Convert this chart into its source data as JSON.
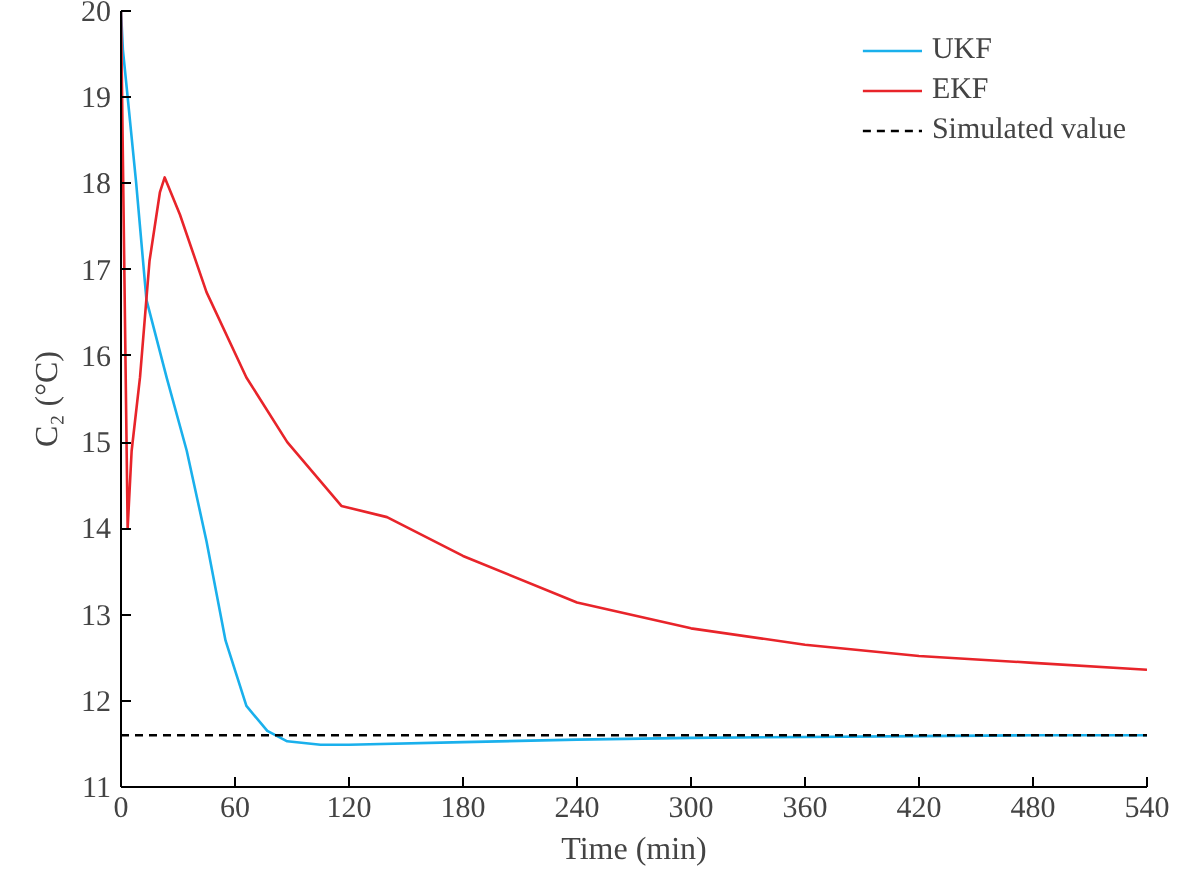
{
  "chart_data": {
    "type": "line",
    "xlabel": "Time (min)",
    "ylabel": "C₂ (°C)",
    "xlim": [
      0,
      540
    ],
    "ylim": [
      11,
      20
    ],
    "xticks": [
      0,
      60,
      120,
      180,
      240,
      300,
      360,
      420,
      480,
      540
    ],
    "yticks": [
      11,
      12,
      13,
      14,
      15,
      16,
      17,
      18,
      19,
      20
    ],
    "grid": false,
    "legend": "top right",
    "line_style": "solid",
    "marker": "none",
    "series": [
      {
        "name": "UKF",
        "color": "#1ab0ec",
        "x": [
          0,
          1,
          3.5,
          8,
          13.4,
          24,
          34.6,
          45,
          55,
          66,
          77,
          87.5,
          105,
          120,
          180,
          240,
          300,
          360,
          420,
          480,
          540
        ],
        "values": [
          20,
          19.55,
          19.0,
          18.0,
          16.65,
          15.75,
          14.9,
          13.85,
          12.7,
          11.94,
          11.65,
          11.53,
          11.49,
          11.49,
          11.52,
          11.55,
          11.57,
          11.58,
          11.59,
          11.6,
          11.6
        ]
      },
      {
        "name": "EKF",
        "color": "#e8242a",
        "x": [
          0,
          3.5,
          5.6,
          10,
          15,
          20.5,
          23,
          31,
          45,
          66,
          87.5,
          116,
          140,
          180,
          240,
          300,
          360,
          420,
          480,
          540
        ],
        "values": [
          20,
          14.0,
          14.9,
          15.75,
          17.1,
          17.9,
          18.07,
          17.64,
          16.74,
          15.75,
          15.0,
          14.26,
          14.13,
          13.68,
          13.14,
          12.84,
          12.65,
          12.52,
          12.44,
          12.36
        ]
      },
      {
        "name": "Simulated value",
        "color": "#000000",
        "line_style": "dashed",
        "x": [
          0,
          540
        ],
        "values": [
          11.6,
          11.6
        ]
      }
    ]
  }
}
